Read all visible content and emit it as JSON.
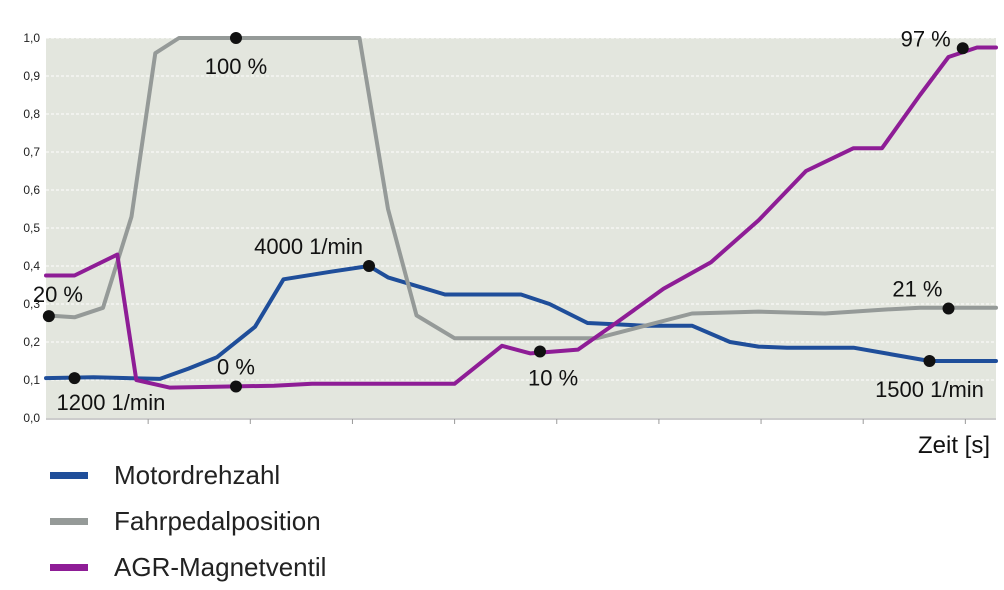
{
  "chart_data": {
    "type": "line",
    "xlabel": "Zeit [s]",
    "ylabel": "",
    "ylim": [
      0,
      1.0
    ],
    "y_ticks": [
      "0,0",
      "0,1",
      "0,2",
      "0,3",
      "0,4",
      "0,5",
      "0,6",
      "0,7",
      "0,8",
      "0,9",
      "1,0"
    ],
    "x_ticks_count": 9,
    "grid": true,
    "legend_position": "bottom-left",
    "series": [
      {
        "name": "Motordrehzahl",
        "color": "#1f4e9a",
        "points": [
          [
            0,
            0.105
          ],
          [
            0.05,
            0.107
          ],
          [
            0.12,
            0.103
          ],
          [
            0.15,
            0.13
          ],
          [
            0.18,
            0.16
          ],
          [
            0.22,
            0.24
          ],
          [
            0.25,
            0.365
          ],
          [
            0.3,
            0.385
          ],
          [
            0.34,
            0.4
          ],
          [
            0.36,
            0.37
          ],
          [
            0.42,
            0.325
          ],
          [
            0.5,
            0.325
          ],
          [
            0.53,
            0.3
          ],
          [
            0.57,
            0.25
          ],
          [
            0.63,
            0.243
          ],
          [
            0.68,
            0.243
          ],
          [
            0.72,
            0.2
          ],
          [
            0.75,
            0.188
          ],
          [
            0.78,
            0.185
          ],
          [
            0.85,
            0.185
          ],
          [
            0.93,
            0.15
          ],
          [
            1.0,
            0.15
          ]
        ]
      },
      {
        "name": "Fahrpedalposition",
        "color": "#959a98",
        "points": [
          [
            0,
            0.27
          ],
          [
            0.03,
            0.265
          ],
          [
            0.06,
            0.29
          ],
          [
            0.09,
            0.53
          ],
          [
            0.115,
            0.96
          ],
          [
            0.14,
            1.0
          ],
          [
            0.33,
            1.0
          ],
          [
            0.36,
            0.55
          ],
          [
            0.39,
            0.27
          ],
          [
            0.43,
            0.21
          ],
          [
            0.58,
            0.21
          ],
          [
            0.68,
            0.275
          ],
          [
            0.75,
            0.28
          ],
          [
            0.82,
            0.275
          ],
          [
            0.88,
            0.285
          ],
          [
            0.92,
            0.29
          ],
          [
            1.0,
            0.29
          ]
        ]
      },
      {
        "name": "AGR-Magnetventil",
        "color": "#8e1d96",
        "points": [
          [
            0,
            0.375
          ],
          [
            0.03,
            0.375
          ],
          [
            0.075,
            0.43
          ],
          [
            0.095,
            0.1
          ],
          [
            0.13,
            0.08
          ],
          [
            0.24,
            0.085
          ],
          [
            0.28,
            0.09
          ],
          [
            0.43,
            0.09
          ],
          [
            0.48,
            0.19
          ],
          [
            0.51,
            0.17
          ],
          [
            0.56,
            0.18
          ],
          [
            0.6,
            0.25
          ],
          [
            0.65,
            0.34
          ],
          [
            0.7,
            0.41
          ],
          [
            0.75,
            0.52
          ],
          [
            0.8,
            0.65
          ],
          [
            0.85,
            0.71
          ],
          [
            0.88,
            0.71
          ],
          [
            0.92,
            0.85
          ],
          [
            0.95,
            0.95
          ],
          [
            0.98,
            0.975
          ],
          [
            1.0,
            0.975
          ]
        ]
      }
    ],
    "annotations": [
      {
        "text": "100 %",
        "x": 0.2,
        "y": 1.0,
        "anchor": "below"
      },
      {
        "text": "20 %",
        "x": 0.003,
        "y": 0.268,
        "anchor": "above-right"
      },
      {
        "text": "4000 1/min",
        "x": 0.34,
        "y": 0.4,
        "anchor": "above-left"
      },
      {
        "text": "0 %",
        "x": 0.2,
        "y": 0.083,
        "anchor": "above"
      },
      {
        "text": "10 %",
        "x": 0.52,
        "y": 0.175,
        "anchor": "below-left"
      },
      {
        "text": "21 %",
        "x": 0.95,
        "y": 0.288,
        "anchor": "above-left"
      },
      {
        "text": "97 %",
        "x": 0.965,
        "y": 0.973,
        "anchor": "left"
      },
      {
        "text": "1200 1/min",
        "x": 0.03,
        "y": 0.105,
        "anchor": "below-right"
      },
      {
        "text": "1500 1/min",
        "x": 0.93,
        "y": 0.15,
        "anchor": "below"
      }
    ]
  },
  "legend": {
    "items": [
      {
        "label": "Motordrehzahl",
        "color": "#1f4e9a"
      },
      {
        "label": "Fahrpedalposition",
        "color": "#959a98"
      },
      {
        "label": "AGR-Magnetventil",
        "color": "#8e1d96"
      }
    ]
  }
}
